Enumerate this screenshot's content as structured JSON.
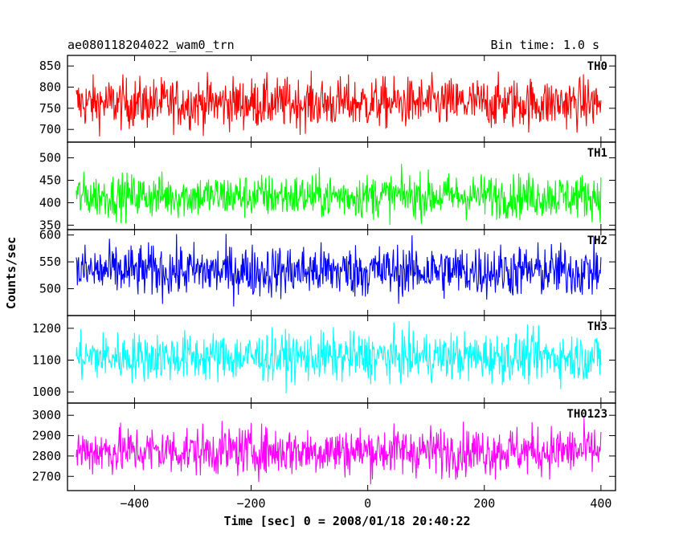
{
  "chart_data": {
    "type": "line",
    "title": "ae080118204022_wam0_trn",
    "subtitle": "Bin time: 1.0 s",
    "xlabel": "Time [sec] 0 = 2008/01/18 20:40:22",
    "ylabel": "Counts/sec",
    "xlim": [
      -515,
      425
    ],
    "x_ticks": [
      -400,
      -200,
      0,
      200,
      400
    ],
    "x_range": [
      -500,
      400
    ],
    "grid": false,
    "panels": [
      {
        "name": "TH0",
        "color": "#ff0000",
        "ylim": [
          670,
          875
        ],
        "ticks": [
          700,
          750,
          800,
          850
        ],
        "mean": 762,
        "amp": 55,
        "n": 900
      },
      {
        "name": "TH1",
        "color": "#00ff00",
        "ylim": [
          340,
          535
        ],
        "ticks": [
          350,
          400,
          450,
          500
        ],
        "mean": 415,
        "amp": 45,
        "n": 900
      },
      {
        "name": "TH2",
        "color": "#0000ff",
        "ylim": [
          450,
          610
        ],
        "ticks": [
          500,
          550,
          600
        ],
        "mean": 533,
        "amp": 45,
        "n": 900
      },
      {
        "name": "TH3",
        "color": "#00ffff",
        "ylim": [
          965,
          1240
        ],
        "ticks": [
          1000,
          1100,
          1200
        ],
        "mean": 1110,
        "amp": 70,
        "n": 900
      },
      {
        "name": "TH0123",
        "color": "#ff00ff",
        "ylim": [
          2630,
          3060
        ],
        "ticks": [
          2700,
          2800,
          2900,
          3000
        ],
        "mean": 2825,
        "amp": 110,
        "n": 900
      }
    ]
  }
}
